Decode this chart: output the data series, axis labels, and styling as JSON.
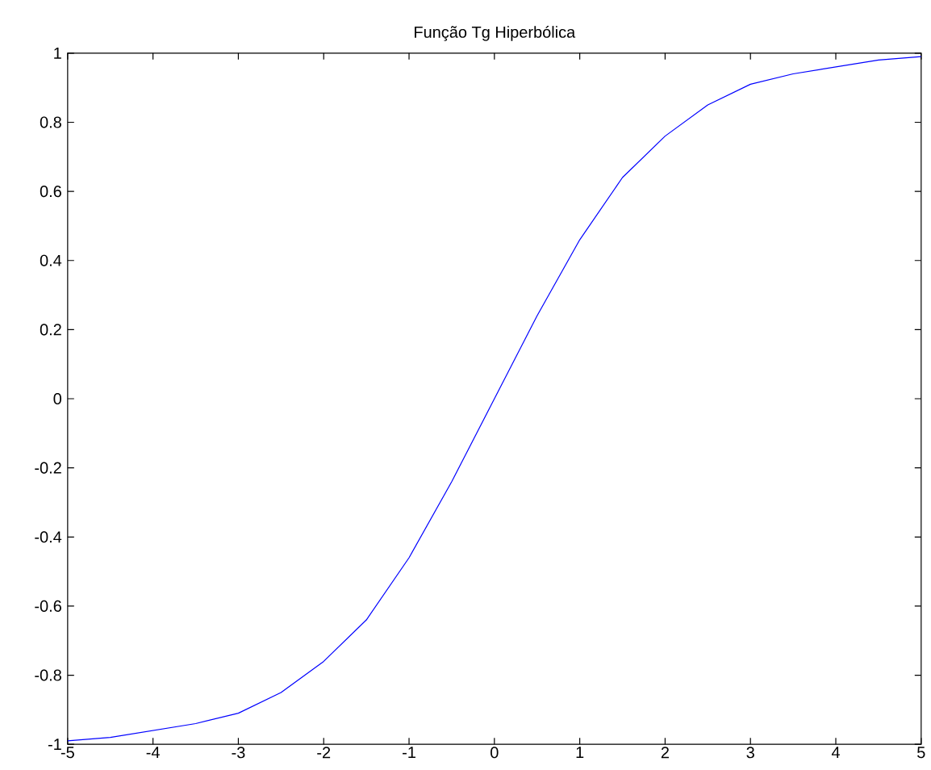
{
  "chart_data": {
    "type": "line",
    "title": "Função Tg Hiperbólica",
    "x": [
      -5,
      -4.5,
      -4,
      -3.5,
      -3,
      -2.5,
      -2,
      -1.5,
      -1,
      -0.5,
      0,
      0.5,
      1,
      1.5,
      2,
      2.5,
      3,
      3.5,
      4,
      4.5,
      5
    ],
    "values": [
      -0.99,
      -0.98,
      -0.96,
      -0.94,
      -0.91,
      -0.85,
      -0.76,
      -0.64,
      -0.46,
      -0.24,
      0,
      0.24,
      0.46,
      0.64,
      0.76,
      0.85,
      0.91,
      0.94,
      0.96,
      0.98,
      0.99
    ],
    "color": "#0000ff",
    "xlim": [
      -5,
      5
    ],
    "ylim": [
      -1,
      1
    ],
    "xticks": [
      -5,
      -4,
      -3,
      -2,
      -1,
      0,
      1,
      2,
      3,
      4,
      5
    ],
    "yticks": [
      -1,
      -0.8,
      -0.6,
      -0.4,
      -0.2,
      0,
      0.2,
      0.4,
      0.6,
      0.8,
      1
    ]
  }
}
